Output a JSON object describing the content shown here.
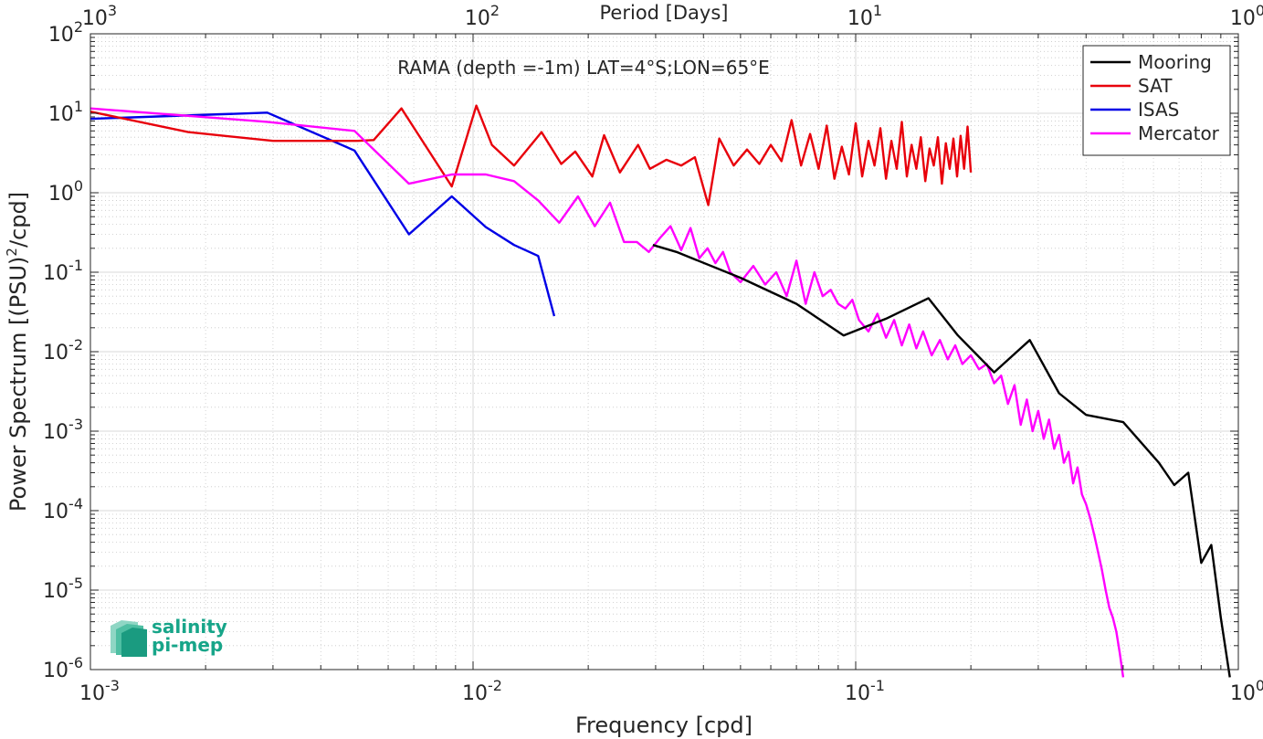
{
  "chart_data": {
    "type": "line",
    "title": "RAMA (depth =-1m) LAT=4°S;LON=65°E",
    "xlabel": "Frequency [cpd]",
    "ylabel": "Power Spectrum [(PSU)",
    "ylabel_sup": "2",
    "ylabel_tail": "/cpd]",
    "top_xlabel": "Period [Days]",
    "x_scale": "log",
    "y_scale": "log",
    "xlim": [
      0.001,
      1
    ],
    "ylim": [
      1e-06,
      100
    ],
    "grid": true,
    "legend_position": "top-right",
    "x_ticks": [
      {
        "value": 0.001,
        "base": "10",
        "exp": "-3"
      },
      {
        "value": 0.01,
        "base": "10",
        "exp": "-2"
      },
      {
        "value": 0.1,
        "base": "10",
        "exp": "-1"
      },
      {
        "value": 1,
        "base": "10",
        "exp": "0"
      }
    ],
    "top_ticks": [
      {
        "value": 0.001,
        "base": "10",
        "exp": "3"
      },
      {
        "value": 0.01,
        "base": "10",
        "exp": "2"
      },
      {
        "value": 0.1,
        "base": "10",
        "exp": "1"
      },
      {
        "value": 1,
        "base": "10",
        "exp": "0"
      }
    ],
    "y_ticks": [
      {
        "value": 1e-06,
        "base": "10",
        "exp": "-6"
      },
      {
        "value": 1e-05,
        "base": "10",
        "exp": "-5"
      },
      {
        "value": 0.0001,
        "base": "10",
        "exp": "-4"
      },
      {
        "value": 0.001,
        "base": "10",
        "exp": "-3"
      },
      {
        "value": 0.01,
        "base": "10",
        "exp": "-2"
      },
      {
        "value": 0.1,
        "base": "10",
        "exp": "-1"
      },
      {
        "value": 1,
        "base": "10",
        "exp": "0"
      },
      {
        "value": 10,
        "base": "10",
        "exp": "1"
      },
      {
        "value": 100,
        "base": "10",
        "exp": "2"
      }
    ],
    "series": [
      {
        "name": "Mooring",
        "color": "#000000",
        "x": [
          0.0295,
          0.034,
          0.05,
          0.07,
          0.093,
          0.12,
          0.155,
          0.185,
          0.23,
          0.285,
          0.34,
          0.4,
          0.5,
          0.62,
          0.68,
          0.74,
          0.8,
          0.85,
          0.9,
          0.95
        ],
        "y": [
          0.22,
          0.18,
          0.085,
          0.04,
          0.016,
          0.026,
          0.047,
          0.016,
          0.0055,
          0.014,
          0.003,
          0.0016,
          0.0013,
          0.0004,
          0.00021,
          0.0003,
          2.2e-05,
          3.7e-05,
          4.5e-06,
          8e-07
        ]
      },
      {
        "name": "SAT",
        "color": "#e8000b",
        "x": [
          0.001,
          0.0018,
          0.003,
          0.005,
          0.0055,
          0.0065,
          0.0088,
          0.0102,
          0.0112,
          0.0128,
          0.0151,
          0.017,
          0.0185,
          0.0205,
          0.022,
          0.0242,
          0.027,
          0.029,
          0.032,
          0.035,
          0.038,
          0.0412,
          0.044,
          0.048,
          0.052,
          0.056,
          0.06,
          0.064,
          0.068,
          0.072,
          0.076,
          0.08,
          0.084,
          0.088,
          0.092,
          0.096,
          0.1,
          0.104,
          0.108,
          0.112,
          0.116,
          0.12,
          0.124,
          0.128,
          0.132,
          0.136,
          0.14,
          0.144,
          0.148,
          0.152,
          0.156,
          0.16,
          0.164,
          0.168,
          0.172,
          0.176,
          0.18,
          0.184,
          0.188,
          0.192,
          0.196,
          0.2
        ],
        "y": [
          10.5,
          5.8,
          4.5,
          4.5,
          4.6,
          11.5,
          1.2,
          12.5,
          4.0,
          2.2,
          5.8,
          2.3,
          3.3,
          1.6,
          5.3,
          1.8,
          4.0,
          2.0,
          2.6,
          2.2,
          2.8,
          0.7,
          4.8,
          2.2,
          3.5,
          2.3,
          4.0,
          2.5,
          8.2,
          2.2,
          5.5,
          2.0,
          7.0,
          1.5,
          3.8,
          1.7,
          7.5,
          1.6,
          4.5,
          2.2,
          6.5,
          1.5,
          4.5,
          2.0,
          7.8,
          1.6,
          4.0,
          2.0,
          5.0,
          1.4,
          3.6,
          2.2,
          5.0,
          1.3,
          4.2,
          2.0,
          4.8,
          1.6,
          5.2,
          2.0,
          6.8,
          1.8
        ]
      },
      {
        "name": "ISAS",
        "color": "#0000e6",
        "x": [
          0.001,
          0.0029,
          0.0049,
          0.0068,
          0.0088,
          0.0108,
          0.0128,
          0.0148,
          0.0163
        ],
        "y": [
          8.5,
          10.2,
          3.4,
          0.3,
          0.9,
          0.37,
          0.22,
          0.16,
          0.028
        ]
      },
      {
        "name": "Mercator",
        "color": "#ff00ff",
        "x": [
          0.001,
          0.0029,
          0.0049,
          0.0068,
          0.0088,
          0.0108,
          0.0128,
          0.0148,
          0.0168,
          0.0188,
          0.0208,
          0.0228,
          0.0248,
          0.0268,
          0.0288,
          0.0308,
          0.0328,
          0.035,
          0.037,
          0.039,
          0.041,
          0.043,
          0.045,
          0.047,
          0.05,
          0.054,
          0.058,
          0.062,
          0.066,
          0.07,
          0.074,
          0.078,
          0.082,
          0.086,
          0.09,
          0.094,
          0.098,
          0.102,
          0.108,
          0.114,
          0.12,
          0.126,
          0.132,
          0.138,
          0.144,
          0.15,
          0.158,
          0.166,
          0.174,
          0.182,
          0.19,
          0.2,
          0.21,
          0.22,
          0.23,
          0.24,
          0.25,
          0.26,
          0.27,
          0.28,
          0.29,
          0.3,
          0.31,
          0.32,
          0.33,
          0.34,
          0.35,
          0.36,
          0.37,
          0.38,
          0.39,
          0.4,
          0.41,
          0.42,
          0.43,
          0.44,
          0.45,
          0.46,
          0.47,
          0.48,
          0.49,
          0.5
        ],
        "y": [
          11.5,
          7.8,
          6.0,
          1.3,
          1.7,
          1.7,
          1.4,
          0.8,
          0.42,
          0.9,
          0.38,
          0.75,
          0.24,
          0.24,
          0.18,
          0.27,
          0.38,
          0.19,
          0.36,
          0.15,
          0.2,
          0.13,
          0.18,
          0.1,
          0.075,
          0.12,
          0.07,
          0.1,
          0.05,
          0.14,
          0.04,
          0.1,
          0.05,
          0.06,
          0.04,
          0.035,
          0.045,
          0.025,
          0.018,
          0.03,
          0.015,
          0.025,
          0.012,
          0.022,
          0.011,
          0.018,
          0.009,
          0.014,
          0.008,
          0.012,
          0.007,
          0.009,
          0.006,
          0.007,
          0.004,
          0.005,
          0.0022,
          0.0038,
          0.0012,
          0.0025,
          0.001,
          0.0018,
          0.0008,
          0.0014,
          0.0006,
          0.0009,
          0.0004,
          0.00055,
          0.00022,
          0.00035,
          0.00016,
          0.00012,
          8e-05,
          5e-05,
          3e-05,
          1.8e-05,
          1e-05,
          6e-06,
          4.5e-06,
          3e-06,
          1.6e-06,
          8e-07
        ]
      }
    ]
  },
  "logo": {
    "line1": "salinity",
    "line2": "pi-mep",
    "color": "#17a589"
  }
}
